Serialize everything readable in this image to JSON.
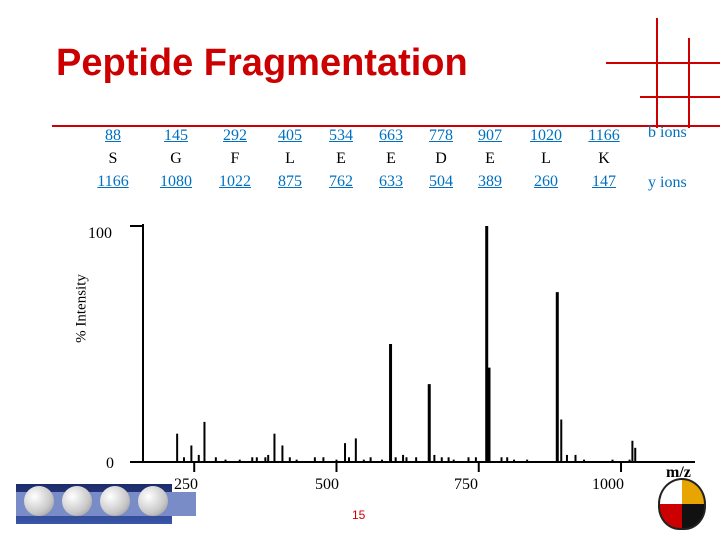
{
  "slide": {
    "title": "Peptide Fragmentation",
    "page_number": "15"
  },
  "fragments": [
    {
      "b": "88",
      "residue": "S",
      "y": "1166"
    },
    {
      "b": "145",
      "residue": "G",
      "y": "1080"
    },
    {
      "b": "292",
      "residue": "F",
      "y": "1022"
    },
    {
      "b": "405",
      "residue": "L",
      "y": "875"
    },
    {
      "b": "534",
      "residue": "E",
      "y": "762"
    },
    {
      "b": "663",
      "residue": "E",
      "y": "633"
    },
    {
      "b": "778",
      "residue": "D",
      "y": "504"
    },
    {
      "b": "907",
      "residue": "E",
      "y": "389"
    },
    {
      "b": "1020",
      "residue": "L",
      "y": "260"
    },
    {
      "b": "1166",
      "residue": "K",
      "y": "147"
    }
  ],
  "ion_labels": {
    "b": "b ions",
    "y": "y ions"
  },
  "spectrum": {
    "ylabel": "% Intensity",
    "xlabel": "m/z",
    "y_ticks": [
      "100",
      "0"
    ],
    "x_ticks": [
      "250",
      "500",
      "750",
      "1000"
    ],
    "x_range": [
      160,
      1130
    ],
    "y_range": [
      0,
      100
    ],
    "peaks": [
      [
        220,
        12
      ],
      [
        232,
        2
      ],
      [
        245,
        7
      ],
      [
        258,
        3
      ],
      [
        268,
        17
      ],
      [
        288,
        2
      ],
      [
        305,
        1
      ],
      [
        330,
        1
      ],
      [
        352,
        2
      ],
      [
        360,
        2
      ],
      [
        375,
        2
      ],
      [
        380,
        3
      ],
      [
        391,
        12
      ],
      [
        405,
        7
      ],
      [
        418,
        2
      ],
      [
        430,
        1
      ],
      [
        462,
        2
      ],
      [
        477,
        2
      ],
      [
        500,
        1
      ],
      [
        515,
        8
      ],
      [
        522,
        2
      ],
      [
        534,
        10
      ],
      [
        548,
        1
      ],
      [
        560,
        2
      ],
      [
        580,
        1
      ],
      [
        595,
        50
      ],
      [
        604,
        2
      ],
      [
        617,
        3
      ],
      [
        623,
        2
      ],
      [
        640,
        2
      ],
      [
        663,
        33
      ],
      [
        672,
        3
      ],
      [
        685,
        2
      ],
      [
        697,
        2
      ],
      [
        706,
        1
      ],
      [
        732,
        2
      ],
      [
        745,
        2
      ],
      [
        764,
        100
      ],
      [
        768,
        40
      ],
      [
        790,
        2
      ],
      [
        800,
        2
      ],
      [
        812,
        1
      ],
      [
        835,
        1
      ],
      [
        888,
        72
      ],
      [
        895,
        18
      ],
      [
        905,
        3
      ],
      [
        920,
        3
      ],
      [
        935,
        1
      ],
      [
        985,
        1
      ],
      [
        1015,
        1
      ],
      [
        1020,
        9
      ],
      [
        1025,
        6
      ]
    ]
  },
  "logos": {
    "left": "CBCB",
    "right": "University of Maryland seal"
  },
  "colors": {
    "title": "#cc0000",
    "ion_label": "#0070c0",
    "rules": "#cc0000"
  }
}
